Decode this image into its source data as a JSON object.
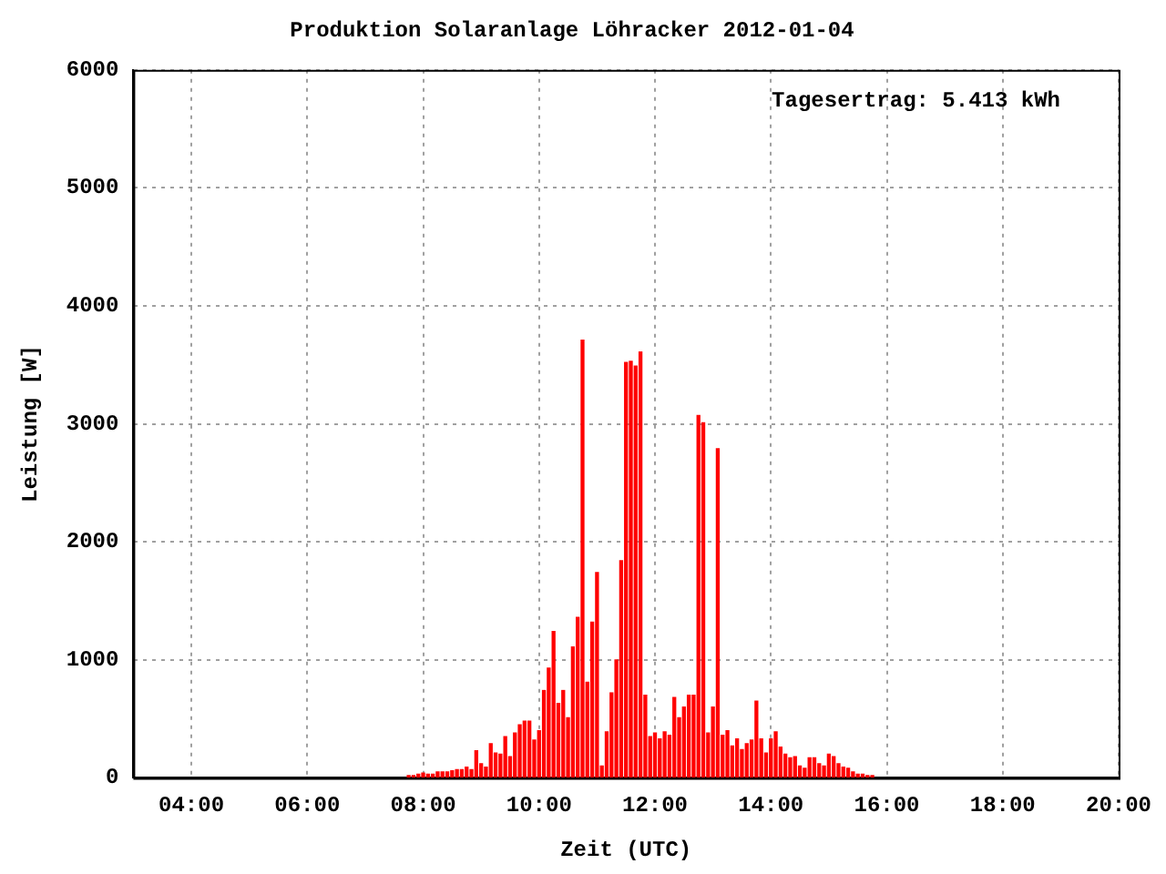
{
  "chart_data": {
    "type": "bar",
    "title": "Produktion Solaranlage Löhracker 2012-01-04",
    "xlabel": "Zeit (UTC)",
    "ylabel": "Leistung [W]",
    "annotations": [
      "Tagesertrag: 5.413 kWh"
    ],
    "color": "#ff0000",
    "x": [
      7.75,
      7.8333,
      7.9167,
      8,
      8.0833,
      8.1667,
      8.25,
      8.3333,
      8.4167,
      8.5,
      8.5833,
      8.6667,
      8.75,
      8.8333,
      8.9167,
      9,
      9.0833,
      9.1667,
      9.25,
      9.3333,
      9.4167,
      9.5,
      9.5833,
      9.6667,
      9.75,
      9.8333,
      9.9167,
      10,
      10.0833,
      10.1667,
      10.25,
      10.3333,
      10.4167,
      10.5,
      10.5833,
      10.6667,
      10.75,
      10.8333,
      10.9167,
      11,
      11.0833,
      11.1667,
      11.25,
      11.3333,
      11.4167,
      11.5,
      11.5833,
      11.6667,
      11.75,
      11.8333,
      11.9167,
      12,
      12.0833,
      12.1667,
      12.25,
      12.3333,
      12.4167,
      12.5,
      12.5833,
      12.6667,
      12.75,
      12.8333,
      12.9167,
      13,
      13.0833,
      13.1667,
      13.25,
      13.3333,
      13.4167,
      13.5,
      13.5833,
      13.6667,
      13.75,
      13.8333,
      13.9167,
      14,
      14.0833,
      14.1667,
      14.25,
      14.3333,
      14.4167,
      14.5,
      14.5833,
      14.6667,
      14.75,
      14.8333,
      14.9167,
      15,
      15.0833,
      15.1667,
      15.25,
      15.3333,
      15.4167,
      15.5,
      15.5833,
      15.6667,
      15.75
    ],
    "values": [
      20,
      20,
      30,
      40,
      30,
      30,
      50,
      50,
      50,
      60,
      70,
      70,
      90,
      70,
      230,
      120,
      90,
      290,
      210,
      200,
      350,
      180,
      380,
      450,
      480,
      480,
      320,
      400,
      740,
      930,
      1240,
      630,
      740,
      510,
      1110,
      1360,
      3710,
      810,
      1320,
      1740,
      100,
      390,
      720,
      1000,
      1840,
      3520,
      3530,
      3490,
      3610,
      700,
      350,
      380,
      330,
      390,
      360,
      680,
      510,
      600,
      700,
      700,
      3070,
      3010,
      380,
      600,
      2790,
      360,
      400,
      270,
      330,
      240,
      290,
      320,
      650,
      330,
      210,
      330,
      390,
      260,
      200,
      170,
      180,
      100,
      80,
      170,
      170,
      120,
      100,
      200,
      180,
      120,
      90,
      80,
      50,
      30,
      30,
      20,
      20
    ],
    "xlim": [
      3,
      20
    ],
    "xticks": [
      {
        "value": 4,
        "label": "04:00"
      },
      {
        "value": 6,
        "label": "06:00"
      },
      {
        "value": 8,
        "label": "08:00"
      },
      {
        "value": 10,
        "label": "10:00"
      },
      {
        "value": 12,
        "label": "12:00"
      },
      {
        "value": 14,
        "label": "14:00"
      },
      {
        "value": 16,
        "label": "16:00"
      },
      {
        "value": 18,
        "label": "18:00"
      },
      {
        "value": 20,
        "label": "20:00"
      }
    ],
    "ylim": [
      0,
      6000
    ],
    "yticks": [
      0,
      1000,
      2000,
      3000,
      4000,
      5000,
      6000
    ],
    "grid": true
  }
}
